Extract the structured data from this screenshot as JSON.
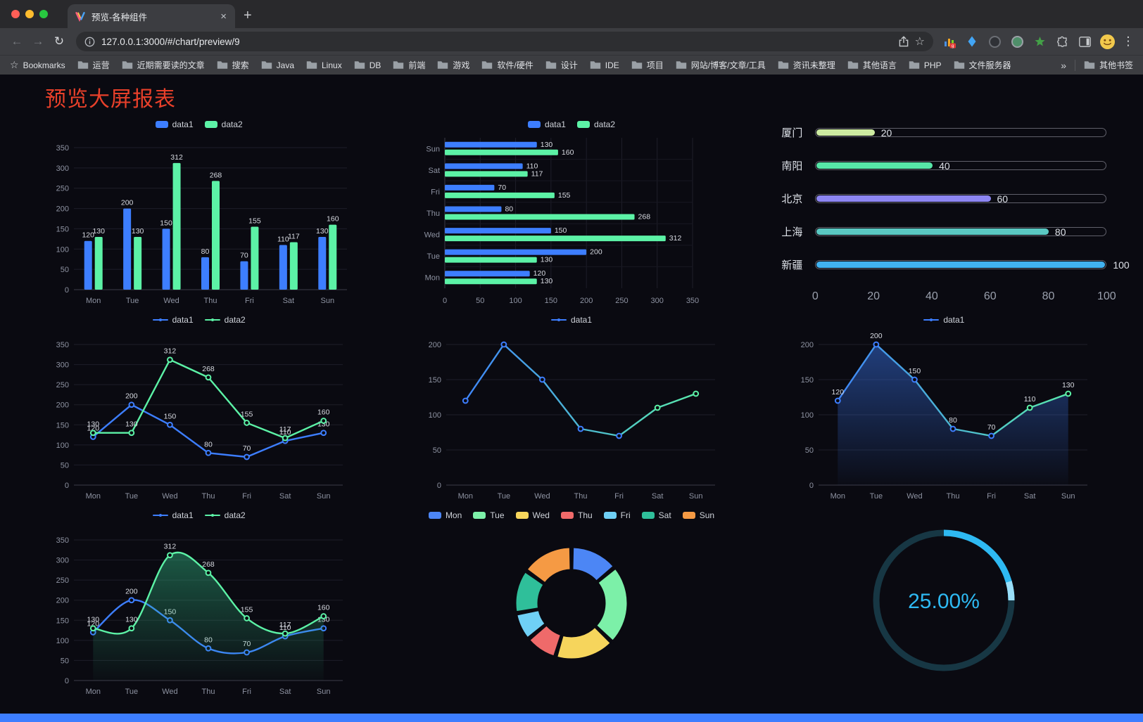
{
  "browser": {
    "tab": {
      "title": "预览-各种组件",
      "close_glyph": "×",
      "new_tab_glyph": "+"
    },
    "toolbar": {
      "back_glyph": "←",
      "forward_glyph": "→",
      "reload_glyph": "↻",
      "url": "127.0.0.1:3000/#/chart/preview/9",
      "star_glyph": "☆",
      "menu_glyph": "⋮"
    },
    "bookmarks_bar": {
      "first_item": "Bookmarks",
      "star_glyph": "☆",
      "folders": [
        "运营",
        "近期需要读的文章",
        "搜索",
        "Java",
        "Linux",
        "DB",
        "前端",
        "游戏",
        "软件/硬件",
        "设计",
        "IDE",
        "项目",
        "网站/博客/文章/工具",
        "资讯未整理",
        "其他语言",
        "PHP",
        "文件服务器"
      ],
      "overflow_glyph": "»",
      "other_bookmarks": "其他书签"
    }
  },
  "page": {
    "title": "预览大屏报表",
    "title_color": "#e8402a",
    "background_color": "#0a0a11",
    "accent_blue": "#3D7EFF",
    "accent_green": "#5CF2A6",
    "bottom_bar_color": "#3D7EFF"
  },
  "chart_data": [
    {
      "id": "bar-vertical",
      "type": "bar",
      "render": "bar",
      "legend_shape": "pill",
      "categories": [
        "Mon",
        "Tue",
        "Wed",
        "Thu",
        "Fri",
        "Sat",
        "Sun"
      ],
      "series": [
        {
          "name": "data1",
          "color": "#3D7EFF",
          "values": [
            120,
            200,
            150,
            80,
            70,
            110,
            130
          ]
        },
        {
          "name": "data2",
          "color": "#5CF2A6",
          "values": [
            130,
            130,
            312,
            268,
            155,
            117,
            160
          ]
        }
      ],
      "ylim": [
        0,
        350
      ],
      "ytick_step": 50,
      "value_labels": true
    },
    {
      "id": "bar-horizontal",
      "type": "bar",
      "render": "hbar",
      "orientation": "horizontal",
      "legend_shape": "pill",
      "categories": [
        "Mon",
        "Tue",
        "Wed",
        "Thu",
        "Fri",
        "Sat",
        "Sun"
      ],
      "series": [
        {
          "name": "data1",
          "color": "#3D7EFF",
          "values": [
            120,
            200,
            150,
            80,
            70,
            110,
            130
          ]
        },
        {
          "name": "data2",
          "color": "#5CF2A6",
          "values": [
            130,
            130,
            312,
            268,
            155,
            117,
            160
          ]
        }
      ],
      "xlim": [
        0,
        350
      ],
      "xtick_step": 50,
      "value_labels": true
    },
    {
      "id": "city-progress",
      "type": "bar",
      "render": "progress",
      "orientation": "horizontal",
      "legend": false,
      "categories": [
        "厦门",
        "南阳",
        "北京",
        "上海",
        "新疆"
      ],
      "values": [
        20,
        40,
        60,
        80,
        100
      ],
      "bar_colors": [
        "#cdeba1",
        "#57e6a8",
        "#8d86f2",
        "#5ac8c2",
        "#41b2f0"
      ],
      "xlim": [
        0,
        100
      ],
      "xticks": [
        0,
        20,
        40,
        60,
        80,
        100
      ]
    },
    {
      "id": "line-two",
      "type": "line",
      "render": "line",
      "legend_shape": "line",
      "categories": [
        "Mon",
        "Tue",
        "Wed",
        "Thu",
        "Fri",
        "Sat",
        "Sun"
      ],
      "series": [
        {
          "name": "data1",
          "color": "#3D7EFF",
          "values": [
            120,
            200,
            150,
            80,
            70,
            110,
            130
          ]
        },
        {
          "name": "data2",
          "color": "#5CF2A6",
          "values": [
            130,
            130,
            312,
            268,
            155,
            117,
            160
          ]
        }
      ],
      "ylim": [
        0,
        350
      ],
      "ytick_step": 50,
      "value_labels": true
    },
    {
      "id": "line-single",
      "type": "line",
      "render": "line",
      "legend_shape": "line",
      "categories": [
        "Mon",
        "Tue",
        "Wed",
        "Thu",
        "Fri",
        "Sat",
        "Sun"
      ],
      "series": [
        {
          "name": "data1",
          "gradient": [
            "#3D7EFF",
            "#5CF2A6"
          ],
          "values": [
            120,
            200,
            150,
            80,
            70,
            110,
            130
          ]
        }
      ],
      "ylim": [
        0,
        200
      ],
      "ytick_step": 50,
      "value_labels": false
    },
    {
      "id": "line-area",
      "type": "area",
      "render": "line",
      "legend_shape": "line",
      "categories": [
        "Mon",
        "Tue",
        "Wed",
        "Thu",
        "Fri",
        "Sat",
        "Sun"
      ],
      "series": [
        {
          "name": "data1",
          "gradient": [
            "#3D7EFF",
            "#5CF2A6"
          ],
          "area": true,
          "area_color": "#3D7EFF",
          "values": [
            120,
            200,
            150,
            80,
            70,
            110,
            130
          ]
        }
      ],
      "ylim": [
        0,
        200
      ],
      "ytick_step": 50,
      "value_labels": true
    },
    {
      "id": "line-smooth",
      "type": "area",
      "render": "line",
      "smooth": true,
      "legend_shape": "line",
      "categories": [
        "Mon",
        "Tue",
        "Wed",
        "Thu",
        "Fri",
        "Sat",
        "Sun"
      ],
      "series": [
        {
          "name": "data1",
          "color": "#3D7EFF",
          "values": [
            120,
            200,
            150,
            80,
            70,
            110,
            130
          ]
        },
        {
          "name": "data2",
          "color": "#5CF2A6",
          "area": true,
          "area_color": "#35c98e",
          "values": [
            130,
            130,
            312,
            268,
            155,
            117,
            160
          ]
        }
      ],
      "ylim": [
        0,
        350
      ],
      "ytick_step": 50,
      "value_labels": true
    },
    {
      "id": "donut",
      "type": "pie",
      "render": "pie",
      "legend_shape": "pill",
      "labels": [
        "Mon",
        "Tue",
        "Wed",
        "Thu",
        "Fri",
        "Sat",
        "Sun"
      ],
      "values": [
        120,
        200,
        150,
        80,
        70,
        110,
        130
      ],
      "colors": [
        "#4C86F5",
        "#7CF0A8",
        "#F6D55C",
        "#EF6A6A",
        "#6FD0F6",
        "#2FBF9A",
        "#F59A44"
      ]
    },
    {
      "id": "gauge",
      "type": "gauge",
      "render": "gauge",
      "legend": false,
      "value": 25,
      "display": "25.00%",
      "color": "#2EB9F2",
      "track_color": "#173744",
      "highlight": "#9ADFF9"
    }
  ]
}
